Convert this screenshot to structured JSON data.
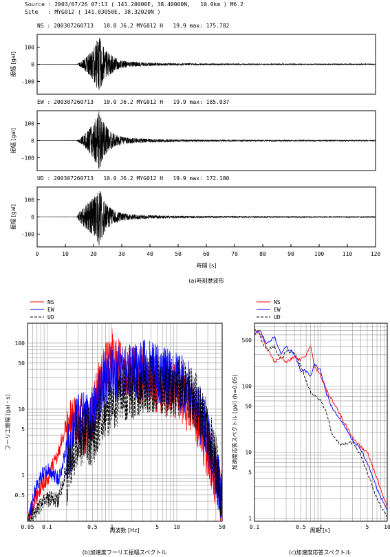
{
  "header": {
    "source_line": "Source : 2003/07/26 07:13 ( 141.20000E, 38.40000N,   10.0km ) M6.2",
    "site_line": "Site   : MYG012 ( 141.03050E, 38.32020N )"
  },
  "colors": {
    "ns": "#ff0000",
    "ew": "#0000ff",
    "ud": "#000000",
    "trace": "#000000",
    "grid": "#9a9a9a"
  },
  "chart_data": [
    {
      "type": "line",
      "panel": "NS",
      "title": "NS : 200307260713   10.0 J6.2 MYG012 H   19.9 max: 175.782",
      "ylabel": "振幅 [gal]",
      "xlabel": "",
      "xlim": [
        0,
        120
      ],
      "ylim": [
        -175,
        175
      ],
      "yticks": [
        100,
        0,
        -100
      ],
      "xticks": [],
      "peak": 175.782,
      "envelope": {
        "t": [
          0,
          14,
          16,
          18,
          20,
          21,
          22,
          23,
          24,
          26,
          28,
          30,
          35,
          40,
          50,
          60,
          80,
          100,
          120
        ],
        "a": [
          0.3,
          0.5,
          22,
          55,
          95,
          135,
          170,
          120,
          95,
          60,
          35,
          22,
          13,
          9,
          6,
          4.5,
          3.5,
          3,
          2.5
        ]
      }
    },
    {
      "type": "line",
      "panel": "EW",
      "title": "EW : 200307260713   10.0 J6.2 MYG012 H   19.9 max: 185.037",
      "ylabel": "振幅 [gal]",
      "xlabel": "",
      "xlim": [
        0,
        120
      ],
      "ylim": [
        -175,
        175
      ],
      "yticks": [
        100,
        0,
        -100
      ],
      "xticks": [],
      "peak": 185.037,
      "envelope": {
        "t": [
          0,
          14,
          16,
          18,
          20,
          21,
          22,
          23,
          24,
          26,
          28,
          30,
          35,
          40,
          50,
          60,
          80,
          100,
          120
        ],
        "a": [
          0.3,
          0.5,
          25,
          60,
          110,
          140,
          180,
          130,
          95,
          55,
          35,
          22,
          14,
          10,
          6.5,
          5,
          4,
          3.5,
          3
        ]
      }
    },
    {
      "type": "line",
      "panel": "UD",
      "title": "UD : 200307260713   10.0 J6.2 MYG012 H   19.9 max: 172.180",
      "ylabel": "振幅 [gal]",
      "xlabel": "時間 [s]",
      "xlim": [
        0,
        120
      ],
      "ylim": [
        -175,
        175
      ],
      "yticks": [
        100,
        0,
        -100
      ],
      "xticks": [
        0,
        10,
        20,
        30,
        40,
        50,
        60,
        70,
        80,
        90,
        100,
        110,
        120
      ],
      "peak": 172.18,
      "envelope": {
        "t": [
          0,
          14,
          15,
          17,
          19,
          21,
          22,
          23,
          24,
          26,
          28,
          30,
          35,
          40,
          50,
          60,
          80,
          100,
          120
        ],
        "a": [
          0.3,
          0.5,
          30,
          65,
          100,
          130,
          170,
          125,
          95,
          55,
          35,
          22,
          14,
          10,
          7,
          5,
          4,
          3.5,
          3
        ]
      }
    },
    {
      "type": "line",
      "panel": "fourier",
      "xscale": "log",
      "yscale": "log",
      "xlabel": "周波数 [Hz]",
      "ylabel": "フーリエ振幅 [gal・s]",
      "xlim": [
        0.05,
        50
      ],
      "ylim": [
        0.2,
        200
      ],
      "xticks": [
        {
          "v": 0.05,
          "label": "0.05"
        },
        {
          "v": 0.1,
          "label": "0.1"
        },
        {
          "v": 0.5,
          "label": "0.5"
        },
        {
          "v": 1,
          "label": "1"
        },
        {
          "v": 5,
          "label": "5"
        },
        {
          "v": 10,
          "label": "10"
        },
        {
          "v": 50,
          "label": "50"
        }
      ],
      "yticks": [
        {
          "v": 100,
          "label": "100"
        },
        {
          "v": 50,
          "label": "50"
        },
        {
          "v": 10,
          "label": "10"
        },
        {
          "v": 5,
          "label": "5"
        },
        {
          "v": 1,
          "label": "1"
        },
        {
          "v": 0.5,
          "label": "0.5"
        }
      ],
      "series": [
        {
          "name": "NS",
          "f": [
            0.05,
            0.07,
            0.1,
            0.15,
            0.2,
            0.3,
            0.4,
            0.5,
            0.7,
            1.0,
            1.5,
            2,
            3,
            5,
            7,
            10,
            15,
            20,
            30,
            40,
            50
          ],
          "a": [
            0.25,
            0.6,
            1.0,
            2.5,
            7,
            11,
            9,
            14,
            50,
            100,
            60,
            55,
            50,
            40,
            35,
            30,
            20,
            12,
            4,
            1.5,
            0.6
          ]
        },
        {
          "name": "EW",
          "f": [
            0.05,
            0.07,
            0.1,
            0.15,
            0.2,
            0.3,
            0.4,
            0.5,
            0.7,
            1.0,
            1.5,
            2,
            3,
            5,
            7,
            10,
            15,
            20,
            30,
            40,
            50
          ],
          "a": [
            0.2,
            0.9,
            1.4,
            1.0,
            3,
            11,
            12,
            13,
            40,
            60,
            55,
            60,
            70,
            60,
            50,
            45,
            35,
            20,
            6,
            2,
            0.7
          ]
        },
        {
          "name": "UD",
          "f": [
            0.05,
            0.07,
            0.1,
            0.15,
            0.2,
            0.3,
            0.4,
            0.5,
            0.7,
            1.0,
            1.5,
            2,
            3,
            5,
            7,
            10,
            15,
            20,
            30,
            40,
            50
          ],
          "a": [
            0.22,
            0.35,
            0.5,
            0.5,
            1.5,
            6,
            7,
            6,
            15,
            20,
            30,
            30,
            40,
            40,
            35,
            35,
            30,
            22,
            8,
            2.5,
            0.8
          ]
        }
      ]
    },
    {
      "type": "line",
      "panel": "response",
      "xscale": "log",
      "yscale": "log",
      "xlabel": "周期 [s]",
      "ylabel": "加速度応答スペクトル [gal] (h=0.05)",
      "xlim": [
        0.1,
        10
      ],
      "ylim": [
        0.9,
        900
      ],
      "xticks": [
        {
          "v": 0.1,
          "label": "0.1"
        },
        {
          "v": 0.5,
          "label": "0.5"
        },
        {
          "v": 1,
          "label": "1"
        },
        {
          "v": 5,
          "label": "5"
        },
        {
          "v": 10,
          "label": "10"
        }
      ],
      "yticks": [
        {
          "v": 500,
          "label": "500"
        },
        {
          "v": 100,
          "label": "100"
        },
        {
          "v": 50,
          "label": "50"
        },
        {
          "v": 10,
          "label": "10"
        },
        {
          "v": 5,
          "label": "5"
        },
        {
          "v": 1,
          "label": "1"
        }
      ],
      "series": [
        {
          "name": "NS",
          "T": [
            0.1,
            0.12,
            0.15,
            0.2,
            0.25,
            0.3,
            0.4,
            0.5,
            0.6,
            0.7,
            0.8,
            1.0,
            1.2,
            1.5,
            2.0,
            3,
            4,
            5,
            7,
            10
          ],
          "a": [
            700,
            650,
            400,
            230,
            280,
            230,
            280,
            250,
            300,
            420,
            200,
            140,
            90,
            60,
            35,
            17,
            12,
            10,
            4,
            1.5
          ]
        },
        {
          "name": "EW",
          "T": [
            0.1,
            0.12,
            0.15,
            0.2,
            0.25,
            0.3,
            0.4,
            0.5,
            0.6,
            0.7,
            0.8,
            1.0,
            1.2,
            1.5,
            2.0,
            3,
            4,
            5,
            7,
            10
          ],
          "a": [
            600,
            700,
            450,
            550,
            300,
            400,
            300,
            170,
            170,
            140,
            220,
            170,
            80,
            45,
            30,
            15,
            11,
            7,
            2.8,
            1.3
          ]
        },
        {
          "name": "UD",
          "T": [
            0.1,
            0.12,
            0.15,
            0.2,
            0.25,
            0.3,
            0.4,
            0.5,
            0.6,
            0.7,
            0.8,
            1.0,
            1.2,
            1.5,
            2.0,
            3,
            4,
            5,
            7,
            10
          ],
          "a": [
            700,
            600,
            350,
            400,
            250,
            340,
            330,
            200,
            120,
            80,
            70,
            60,
            40,
            18,
            13,
            14,
            9,
            5,
            2,
            1.0
          ]
        }
      ]
    }
  ],
  "legend": {
    "ns": "NS",
    "ew": "EW",
    "ud": "UD"
  },
  "captions": {
    "time_history": "(a)時刻歴波形",
    "fourier": "(b)加速度フーリエ振幅スペクトル",
    "response": "(c)加速度応答スペクトル"
  }
}
